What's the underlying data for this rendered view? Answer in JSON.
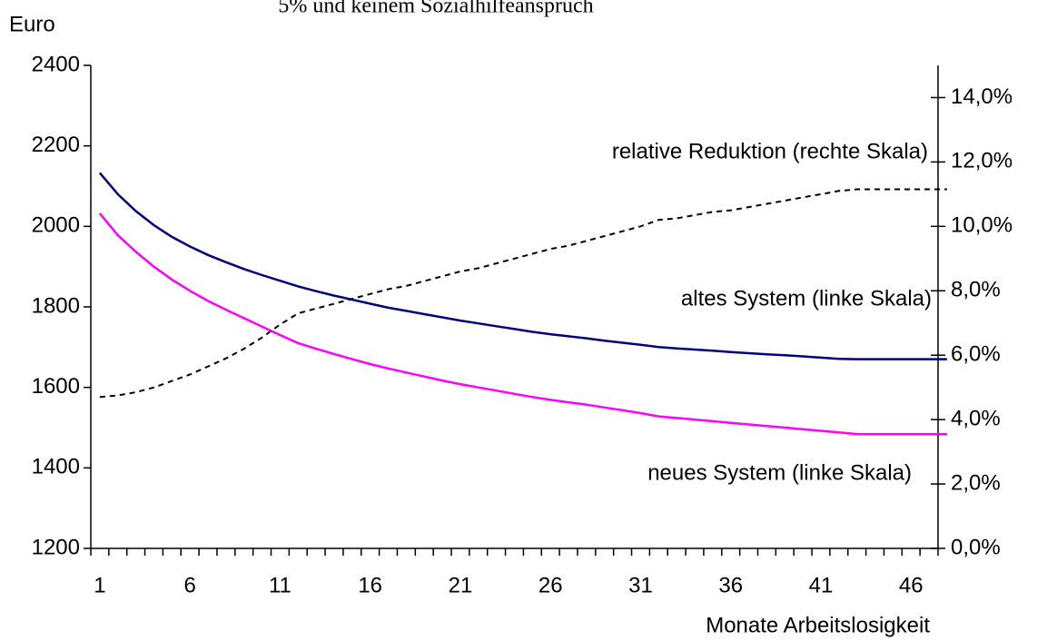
{
  "chart_data": {
    "type": "line",
    "title": "5% und keinem Sozialhilfeanspruch",
    "ylabel": "Euro",
    "xlabel": "Monate Arbeitslosigkeit",
    "annotations": [
      "relative Reduktion (rechte Skala)",
      "altes System (linke Skala)",
      "neues System (linke Skala)"
    ],
    "x": [
      1,
      2,
      3,
      4,
      5,
      6,
      7,
      8,
      9,
      10,
      11,
      12,
      13,
      14,
      15,
      16,
      17,
      18,
      19,
      20,
      21,
      22,
      23,
      24,
      25,
      26,
      27,
      28,
      29,
      30,
      31,
      32,
      33,
      34,
      35,
      36,
      37,
      38,
      39,
      40,
      41,
      42,
      43,
      44,
      45,
      46,
      47,
      48
    ],
    "xlim": [
      0.5,
      47.5
    ],
    "xticks": [
      1,
      6,
      11,
      16,
      21,
      26,
      31,
      36,
      41,
      46
    ],
    "ylim": [
      1200,
      2400
    ],
    "yticks": [
      1200,
      1400,
      1600,
      1800,
      2000,
      2200,
      2400
    ],
    "y2lim": [
      0,
      15
    ],
    "y2ticks": [
      {
        "value": 0,
        "label": "0,0%"
      },
      {
        "value": 2,
        "label": "2,0%"
      },
      {
        "value": 4,
        "label": "4,0%"
      },
      {
        "value": 6,
        "label": "6,0%"
      },
      {
        "value": 8,
        "label": "8,0%"
      },
      {
        "value": 10,
        "label": "10,0%"
      },
      {
        "value": 12,
        "label": "12,0%"
      },
      {
        "value": 14,
        "label": "14,0%"
      }
    ],
    "series": [
      {
        "color": "#000080",
        "style": "solid",
        "values": [
          2133,
          2080,
          2038,
          2003,
          1974,
          1950,
          1929,
          1911,
          1894,
          1879,
          1865,
          1851,
          1839,
          1828,
          1818,
          1808,
          1798,
          1790,
          1782,
          1774,
          1766,
          1759,
          1752,
          1745,
          1738,
          1732,
          1727,
          1722,
          1716,
          1711,
          1706,
          1700,
          1697,
          1694,
          1691,
          1688,
          1685,
          1682,
          1680,
          1677,
          1674,
          1671,
          1670,
          1670,
          1670,
          1670,
          1670,
          1670
        ]
      },
      {
        "color": "#ff00ff",
        "style": "solid",
        "values": [
          2032,
          1978,
          1937,
          1900,
          1868,
          1840,
          1815,
          1793,
          1772,
          1751,
          1730,
          1710,
          1696,
          1683,
          1670,
          1658,
          1647,
          1637,
          1627,
          1617,
          1608,
          1600,
          1592,
          1584,
          1576,
          1569,
          1563,
          1557,
          1550,
          1543,
          1536,
          1528,
          1524,
          1520,
          1516,
          1512,
          1508,
          1504,
          1500,
          1496,
          1492,
          1488,
          1484,
          1484,
          1484,
          1484,
          1484,
          1484
        ]
      },
      {
        "color": "#000000",
        "style": "dashed",
        "axis": "y2",
        "values": [
          4.7,
          4.75,
          4.85,
          5.0,
          5.2,
          5.4,
          5.65,
          5.9,
          6.2,
          6.55,
          6.95,
          7.3,
          7.45,
          7.6,
          7.75,
          7.9,
          8.05,
          8.15,
          8.3,
          8.45,
          8.6,
          8.7,
          8.85,
          9.0,
          9.15,
          9.3,
          9.4,
          9.55,
          9.7,
          9.85,
          10.0,
          10.2,
          10.25,
          10.35,
          10.45,
          10.5,
          10.6,
          10.7,
          10.8,
          10.9,
          11.0,
          11.1,
          11.15,
          11.15,
          11.15,
          11.15,
          11.15,
          11.15
        ]
      }
    ]
  }
}
